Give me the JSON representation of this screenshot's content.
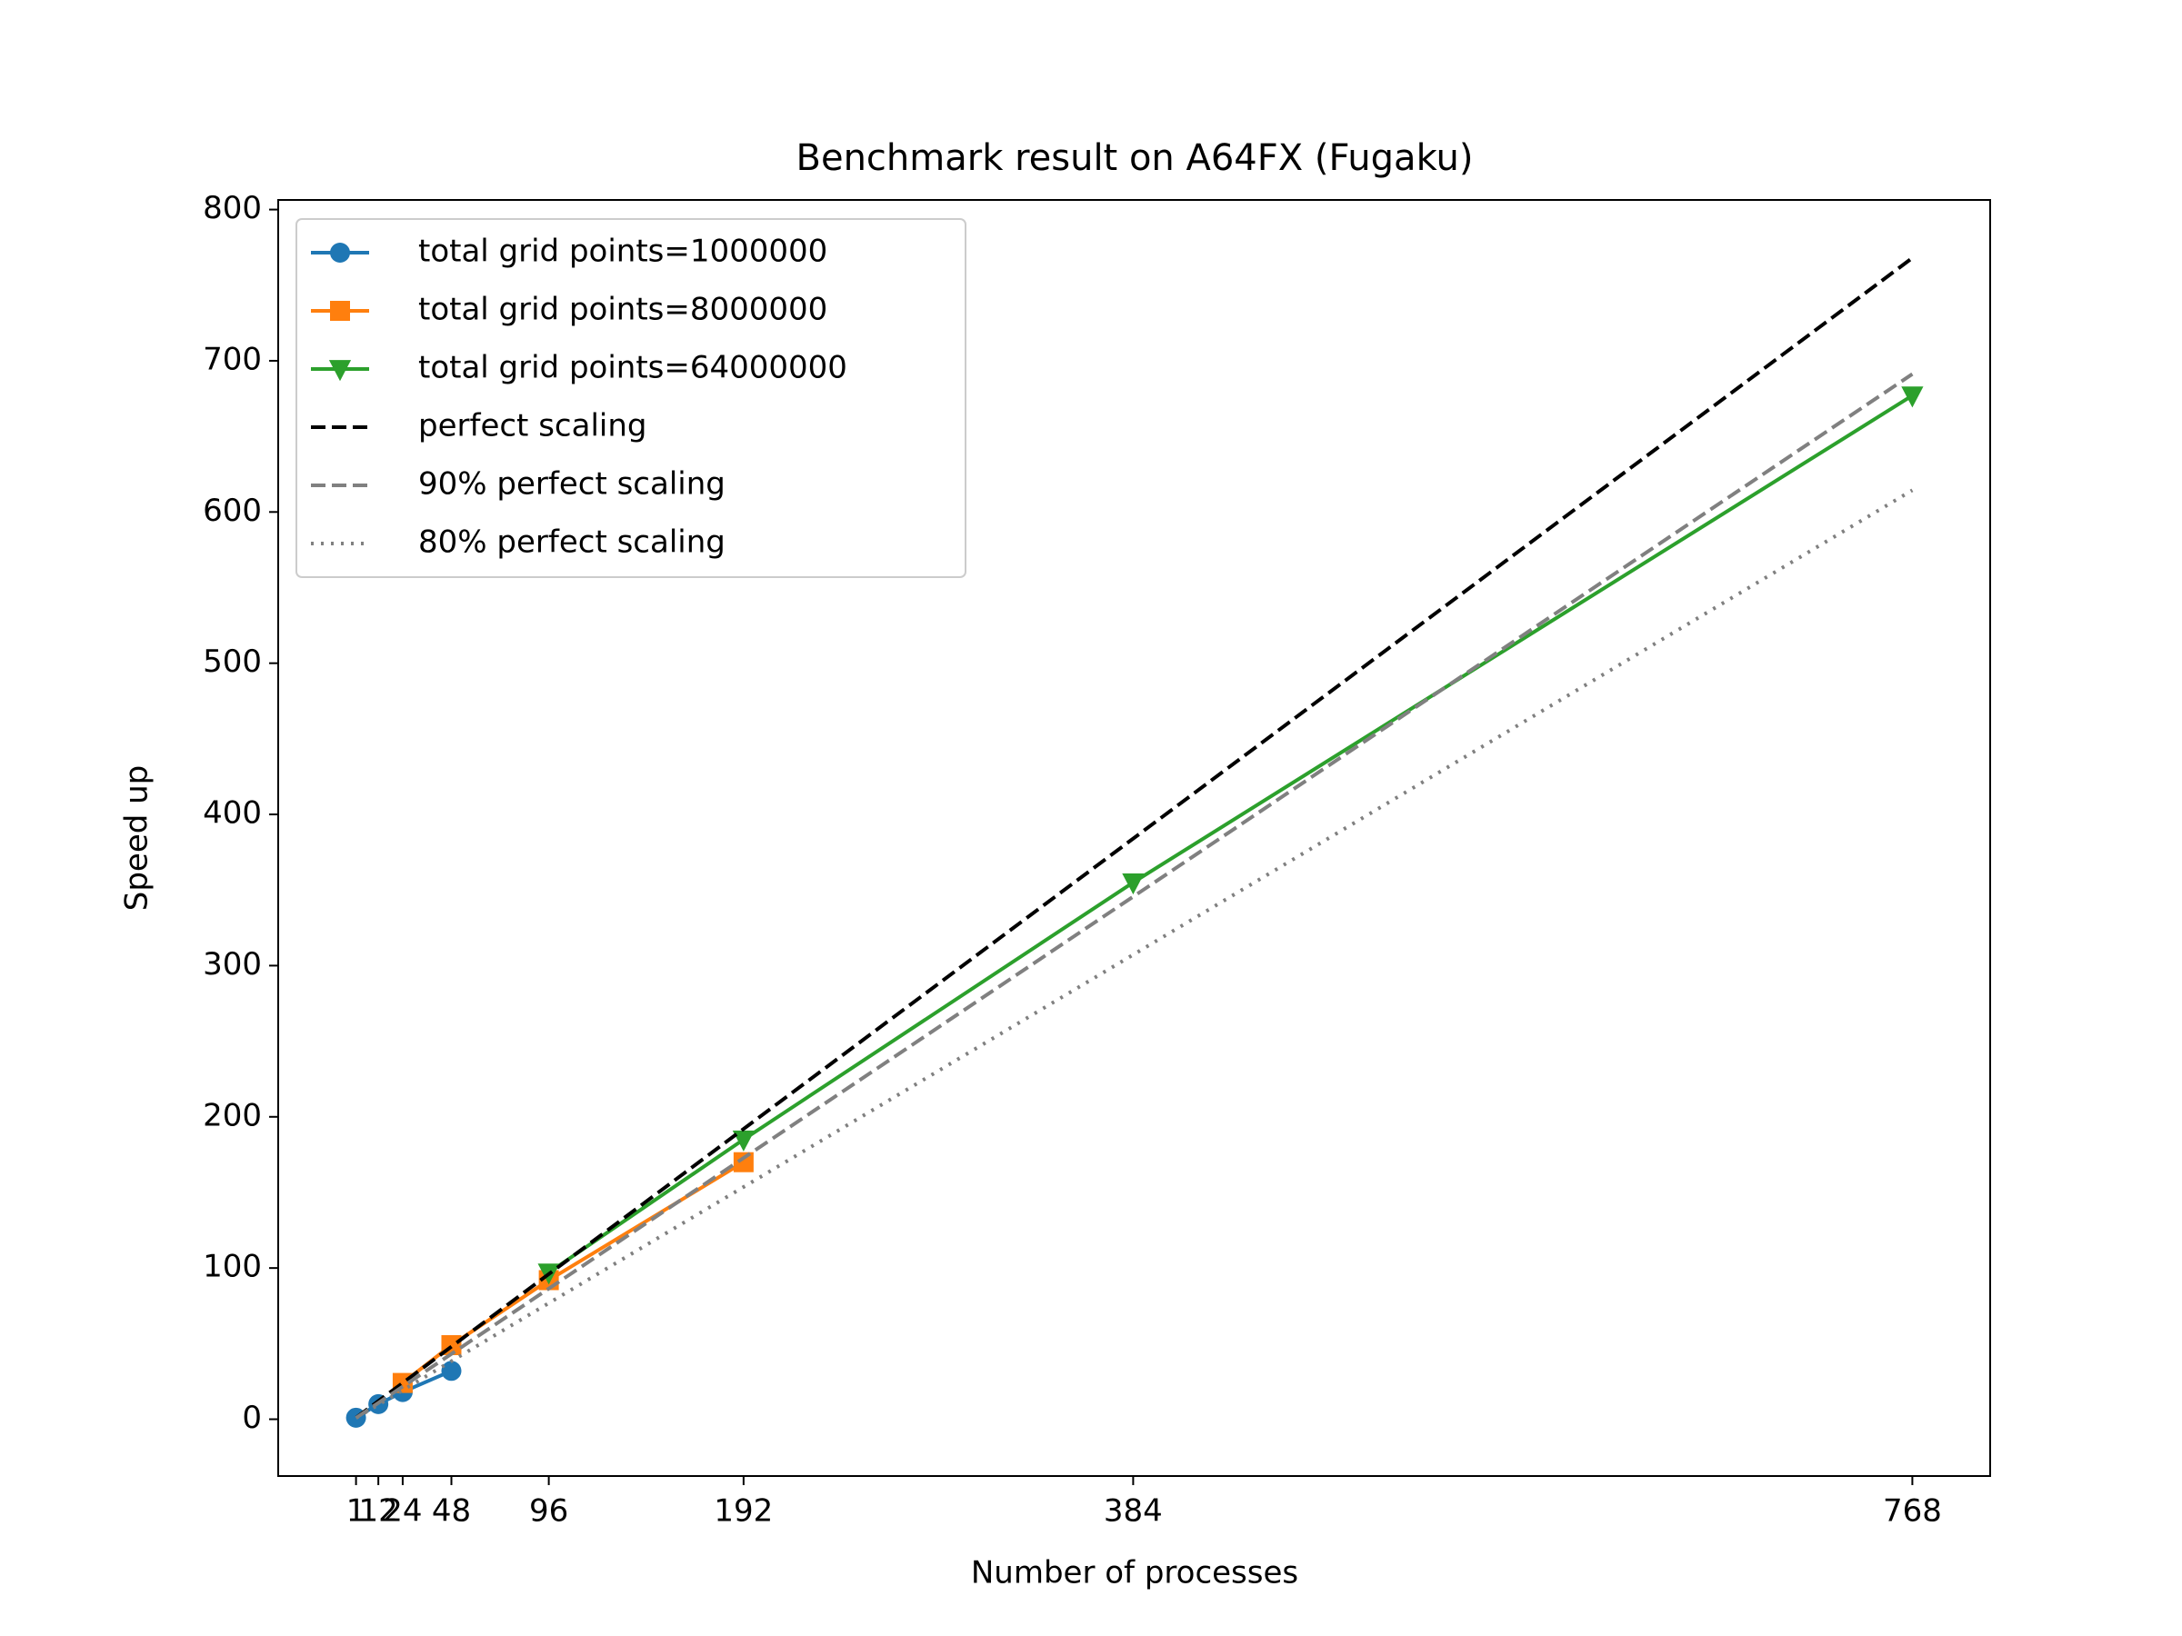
{
  "chart_data": {
    "type": "line",
    "title": "Benchmark result on A64FX (Fugaku)",
    "x_label": "Number of processes",
    "y_label": "Speed up",
    "xlim": [
      -37.35,
      806.35
    ],
    "ylim": [
      -37.56,
      806.36
    ],
    "xticks": [
      1,
      12,
      24,
      48,
      96,
      192,
      384,
      768
    ],
    "yticks": [
      0,
      100,
      200,
      300,
      400,
      500,
      600,
      700,
      800
    ],
    "legend": "upper left",
    "series": [
      {
        "name": "total grid points=1000000",
        "color": "#1f77b4",
        "marker": "circle",
        "linestyle": "solid",
        "x": [
          1,
          12,
          24,
          48
        ],
        "values": [
          1,
          10,
          18,
          32
        ]
      },
      {
        "name": "total grid points=8000000",
        "color": "#ff7f0e",
        "marker": "square",
        "linestyle": "solid",
        "x": [
          24,
          48,
          96,
          192
        ],
        "values": [
          24,
          49,
          92,
          170
        ]
      },
      {
        "name": "total grid points=64000000",
        "color": "#2ca02c",
        "marker": "triangle-down",
        "linestyle": "solid",
        "x": [
          96,
          192,
          384,
          768
        ],
        "values": [
          97,
          185,
          355,
          677
        ]
      },
      {
        "name": "perfect scaling",
        "color": "#000000",
        "marker": "none",
        "linestyle": "dashed",
        "x": [
          1,
          768
        ],
        "values": [
          1,
          768
        ]
      },
      {
        "name": "90% perfect scaling",
        "color": "#808080",
        "marker": "none",
        "linestyle": "dashed",
        "x": [
          1,
          768
        ],
        "values": [
          0.9,
          691.2
        ]
      },
      {
        "name": "80% perfect scaling",
        "color": "#808080",
        "marker": "none",
        "linestyle": "dotted",
        "x": [
          1,
          768
        ],
        "values": [
          0.8,
          614.4
        ]
      }
    ]
  }
}
